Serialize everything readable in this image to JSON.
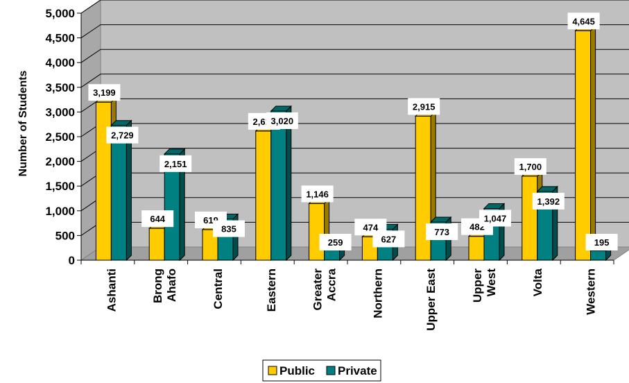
{
  "chart_data": {
    "type": "bar",
    "ylabel": "Number of Students",
    "ylim": [
      0,
      5000
    ],
    "yticks": [
      "0",
      "500",
      "1,000",
      "1,500",
      "2,000",
      "2,500",
      "3,000",
      "3,500",
      "4,000",
      "4,500",
      "5,000"
    ],
    "categories": [
      [
        "Ashanti"
      ],
      [
        "Brong",
        "Ahafo"
      ],
      [
        "Central"
      ],
      [
        "Eastern"
      ],
      [
        "Greater",
        "Accra"
      ],
      [
        "Northern"
      ],
      [
        "Upper East"
      ],
      [
        "Upper",
        "West"
      ],
      [
        "Volta"
      ],
      [
        "Western"
      ]
    ],
    "series": [
      {
        "name": "Public",
        "color": "#FFCC00",
        "values": [
          3199,
          644,
          619,
          2614,
          1146,
          474,
          2915,
          482,
          1700,
          4645
        ],
        "labels": [
          "3,199",
          "644",
          "619",
          "2,614",
          "1,146",
          "474",
          "2,915",
          "482",
          "1,700",
          "4,645"
        ]
      },
      {
        "name": "Private",
        "color": "#008080",
        "values": [
          2729,
          2151,
          835,
          3020,
          259,
          627,
          773,
          1047,
          1392,
          195
        ],
        "labels": [
          "2,729",
          "2,151",
          "835",
          "3,020",
          "259",
          "627",
          "773",
          "1,047",
          "1,392",
          "195"
        ]
      }
    ],
    "legend": "bottom",
    "grid": true
  }
}
